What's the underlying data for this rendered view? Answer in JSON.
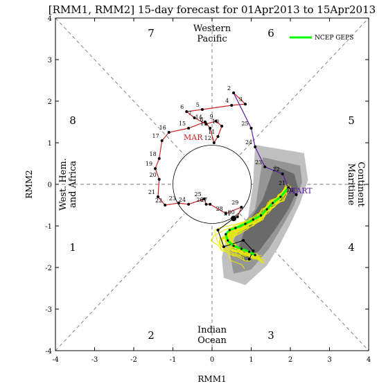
{
  "chart_data": {
    "type": "scatter",
    "title": "[RMM1, RMM2] 15-day forecast for 01Apr2013 to 15Apr2013",
    "xlabel": "RMM1",
    "ylabel": "RMM2",
    "xlim": [
      -4,
      4
    ],
    "ylim": [
      -4,
      4
    ],
    "xticks": [
      -4,
      -3,
      -2,
      -1,
      0,
      1,
      2,
      3,
      4
    ],
    "yticks": [
      -4,
      -3,
      -2,
      -1,
      0,
      1,
      2,
      3,
      4
    ],
    "grid": false,
    "legend": {
      "placement": "top-right",
      "entries": [
        {
          "label": "NCEP GEPS",
          "color": "#00ff00"
        }
      ]
    },
    "phases": [
      "1",
      "2",
      "3",
      "4",
      "5",
      "6",
      "7",
      "8"
    ],
    "regions": {
      "top": [
        "Western",
        "Pacific"
      ],
      "bottom": [
        "Indian",
        "Ocean"
      ],
      "left": [
        "West. Hem.",
        "and Africa"
      ],
      "right": [
        "Maritime",
        "Continent"
      ]
    },
    "annotations": {
      "mar": "MAR",
      "start": "START"
    },
    "colors": {
      "mar_track": "#cc2222",
      "apr_track": "#5a1aa8",
      "ensemble": "#e8e800",
      "ensemble_mean": "#00ff00",
      "spread_outer": "#c0c0c0",
      "spread_mid": "#959595",
      "spread_inner": "#6a6a6a"
    },
    "observed_march": [
      {
        "d": "2",
        "x": 0.55,
        "y": 2.2
      },
      {
        "d": "3",
        "x": 0.85,
        "y": 1.93
      },
      {
        "d": "4",
        "x": 0.5,
        "y": 1.9
      },
      {
        "d": "5",
        "x": -0.25,
        "y": 1.8
      },
      {
        "d": "6",
        "x": -0.65,
        "y": 1.75
      },
      {
        "d": "7",
        "x": -0.45,
        "y": 1.6
      },
      {
        "d": "8",
        "x": -0.15,
        "y": 1.45
      },
      {
        "d": "9",
        "x": 0.1,
        "y": 1.52
      },
      {
        "d": "10",
        "x": 0.25,
        "y": 1.4
      },
      {
        "d": "11",
        "x": 0.15,
        "y": 1.15
      },
      {
        "d": "12",
        "x": 0.05,
        "y": 1.0
      },
      {
        "d": "13",
        "x": -0.05,
        "y": 1.35
      },
      {
        "d": "14",
        "x": -0.18,
        "y": 1.5
      },
      {
        "d": "15",
        "x": -0.6,
        "y": 1.35
      },
      {
        "d": "16",
        "x": -1.1,
        "y": 1.25
      },
      {
        "d": "17",
        "x": -1.28,
        "y": 1.05
      },
      {
        "d": "18",
        "x": -1.35,
        "y": 0.62
      },
      {
        "d": "19",
        "x": -1.45,
        "y": 0.38
      },
      {
        "d": "20",
        "x": -1.35,
        "y": 0.12
      },
      {
        "d": "21",
        "x": -1.38,
        "y": -0.3
      },
      {
        "d": "22",
        "x": -1.2,
        "y": -0.5
      },
      {
        "d": "23",
        "x": -0.85,
        "y": -0.45
      },
      {
        "d": "24",
        "x": -0.6,
        "y": -0.48
      },
      {
        "d": "25",
        "x": -0.2,
        "y": -0.35
      },
      {
        "d": "26",
        "x": -0.15,
        "y": -0.48
      },
      {
        "d": "27",
        "x": -0.05,
        "y": -0.48
      },
      {
        "d": "28",
        "x": 0.35,
        "y": -0.7
      },
      {
        "d": "29",
        "x": 0.75,
        "y": -0.55
      },
      {
        "d": "30",
        "x": 0.65,
        "y": -0.78
      },
      {
        "d": "31",
        "x": 0.55,
        "y": -0.82
      }
    ],
    "observed_april": [
      {
        "d": "",
        "x": 0.55,
        "y": -0.82
      },
      {
        "d": "",
        "x": 0.15,
        "y": -1.1
      },
      {
        "d": "",
        "x": 0.3,
        "y": -1.5
      },
      {
        "d": "",
        "x": 0.8,
        "y": -1.35
      },
      {
        "d": "",
        "x": 1.05,
        "y": -1.6
      },
      {
        "d": "",
        "x": 0.95,
        "y": -1.8
      }
    ],
    "analysis_track": [
      {
        "d": "25",
        "x": 1.0,
        "y": 1.35
      },
      {
        "d": "24",
        "x": 1.1,
        "y": 0.9
      },
      {
        "d": "23",
        "x": 1.35,
        "y": 0.42
      },
      {
        "d": "22",
        "x": 1.8,
        "y": 0.25
      },
      {
        "d": "21",
        "x": 1.95,
        "y": -0.08
      },
      {
        "d": "20",
        "x": 2.15,
        "y": -0.25
      }
    ],
    "ensemble_mean": [
      {
        "x": 1.95,
        "y": -0.08
      },
      {
        "x": 1.75,
        "y": -0.3
      },
      {
        "x": 1.55,
        "y": -0.45
      },
      {
        "x": 1.4,
        "y": -0.6
      },
      {
        "x": 1.25,
        "y": -0.75
      },
      {
        "x": 1.05,
        "y": -0.85
      },
      {
        "x": 0.85,
        "y": -0.95
      },
      {
        "x": 0.6,
        "y": -1.05
      },
      {
        "x": 0.45,
        "y": -1.1
      },
      {
        "x": 0.35,
        "y": -1.2
      },
      {
        "x": 0.4,
        "y": -1.35
      },
      {
        "x": 0.55,
        "y": -1.48
      },
      {
        "x": 0.75,
        "y": -1.55
      },
      {
        "x": 0.95,
        "y": -1.62
      },
      {
        "x": 1.1,
        "y": -1.7
      }
    ],
    "spread_outer": [
      {
        "x": 1.1,
        "y": 0.95
      },
      {
        "x": 2.35,
        "y": 0.75
      },
      {
        "x": 2.45,
        "y": 0.1
      },
      {
        "x": 2.25,
        "y": -0.45
      },
      {
        "x": 2.0,
        "y": -0.95
      },
      {
        "x": 1.7,
        "y": -1.5
      },
      {
        "x": 1.4,
        "y": -1.95
      },
      {
        "x": 0.85,
        "y": -2.42
      },
      {
        "x": 0.3,
        "y": -2.25
      },
      {
        "x": 0.25,
        "y": -1.75
      },
      {
        "x": 0.4,
        "y": -1.2
      },
      {
        "x": 0.9,
        "y": -0.9
      },
      {
        "x": 1.05,
        "y": 0.0
      }
    ],
    "spread_mid": [
      {
        "x": 1.3,
        "y": 0.65
      },
      {
        "x": 2.25,
        "y": 0.45
      },
      {
        "x": 2.3,
        "y": 0.05
      },
      {
        "x": 2.1,
        "y": -0.5
      },
      {
        "x": 1.8,
        "y": -1.0
      },
      {
        "x": 1.45,
        "y": -1.55
      },
      {
        "x": 1.0,
        "y": -2.05
      },
      {
        "x": 0.55,
        "y": -2.15
      },
      {
        "x": 0.45,
        "y": -1.6
      },
      {
        "x": 0.65,
        "y": -1.1
      },
      {
        "x": 1.1,
        "y": -0.6
      }
    ],
    "spread_inner": [
      {
        "x": 1.6,
        "y": 0.45
      },
      {
        "x": 2.1,
        "y": 0.25
      },
      {
        "x": 2.2,
        "y": -0.1
      },
      {
        "x": 1.95,
        "y": -0.6
      },
      {
        "x": 1.6,
        "y": -1.1
      },
      {
        "x": 1.2,
        "y": -1.6
      },
      {
        "x": 0.85,
        "y": -1.85
      },
      {
        "x": 0.65,
        "y": -1.6
      },
      {
        "x": 0.85,
        "y": -1.05
      },
      {
        "x": 1.3,
        "y": -0.35
      }
    ]
  }
}
